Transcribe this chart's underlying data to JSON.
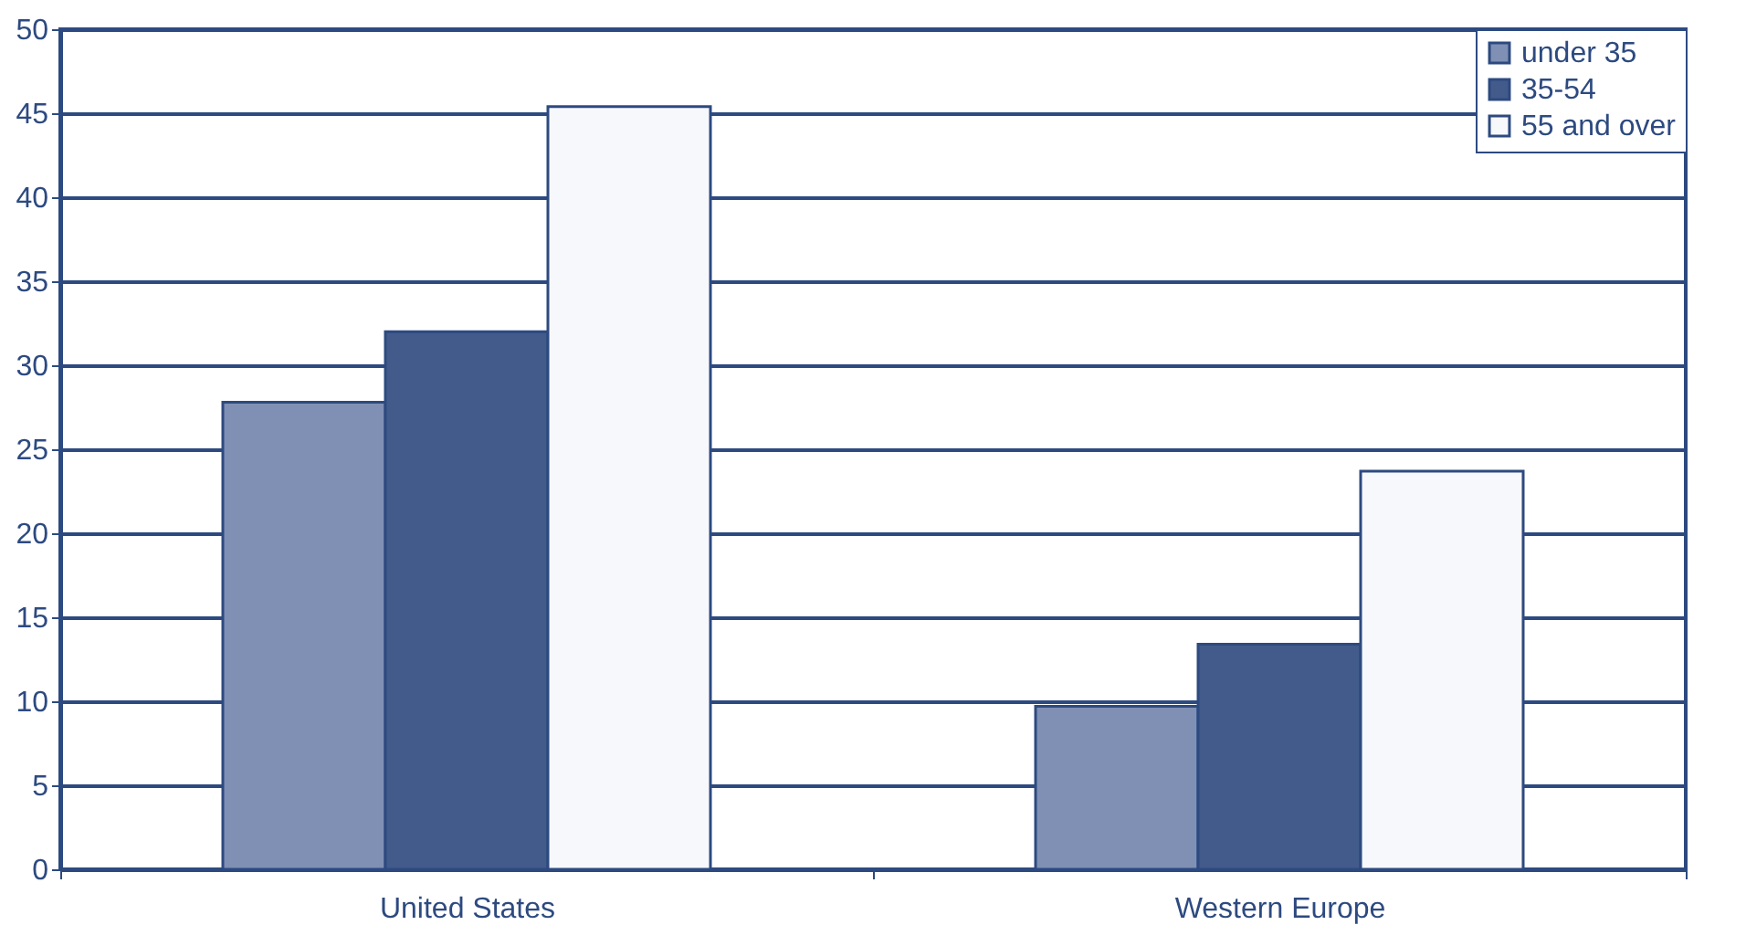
{
  "chart_data": {
    "type": "bar",
    "categories": [
      "United States",
      "Western Europe"
    ],
    "series": [
      {
        "name": "under 35",
        "color": "#8090b4",
        "values": [
          27.8,
          9.7
        ]
      },
      {
        "name": "35-54",
        "color": "#425b8a",
        "values": [
          32,
          13.4
        ]
      },
      {
        "name": "55 and over",
        "color": "#f7f8fb",
        "values": [
          45.4,
          23.7
        ]
      }
    ],
    "ylim": [
      0,
      50
    ],
    "yticks": [
      0,
      5,
      10,
      15,
      20,
      25,
      30,
      35,
      40,
      45,
      50
    ],
    "grid": "y",
    "legend": "top right"
  }
}
